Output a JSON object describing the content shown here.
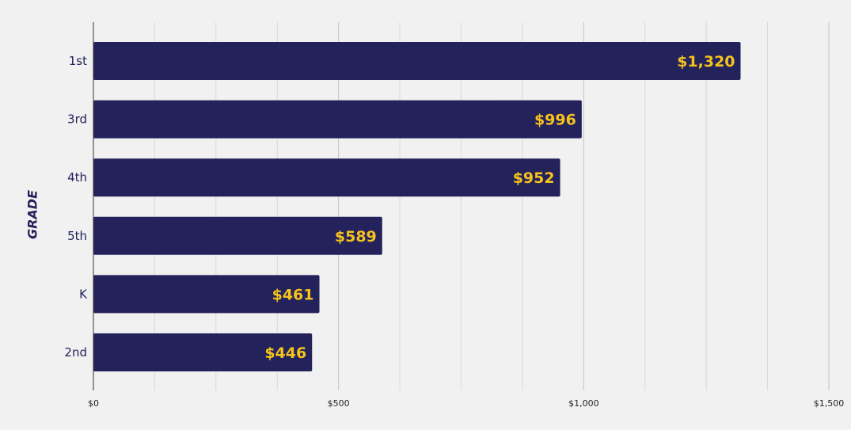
{
  "chart_data": {
    "type": "bar",
    "orientation": "horizontal",
    "categories": [
      "1st",
      "3rd",
      "4th",
      "5th",
      "K",
      "2nd"
    ],
    "values": [
      1320,
      996,
      952,
      589,
      461,
      446
    ],
    "value_labels": [
      "$1,320",
      "$996",
      "$952",
      "$589",
      "$461",
      "$446"
    ],
    "ylabel": "GRADE",
    "xlim": [
      0,
      1500
    ],
    "x_ticks": [
      0,
      500,
      1000,
      1500
    ],
    "x_tick_labels": [
      "$0",
      "$500",
      "$1,000",
      "$1,500"
    ],
    "minor_gridlines_every": 125,
    "grid": true,
    "colors": {
      "bar": "#24225b",
      "value_label": "#f5c31c",
      "background": "#f1f1f1",
      "grid": "#d9d9d9"
    }
  }
}
